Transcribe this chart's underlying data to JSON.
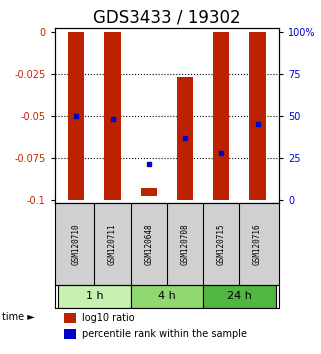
{
  "title": "GDS3433 / 19302",
  "samples": [
    "GSM120710",
    "GSM120711",
    "GSM120648",
    "GSM120708",
    "GSM120715",
    "GSM120716"
  ],
  "time_groups": [
    {
      "label": "1 h",
      "color": "#c8f0b0",
      "start": 0,
      "end": 1
    },
    {
      "label": "4 h",
      "color": "#90d870",
      "start": 2,
      "end": 3
    },
    {
      "label": "24 h",
      "color": "#50b840",
      "start": 4,
      "end": 5
    }
  ],
  "red_bar_top": [
    0.0,
    0.0,
    -0.093,
    -0.027,
    0.0,
    0.0
  ],
  "red_bar_bottom": [
    -0.1,
    -0.1,
    -0.098,
    -0.1,
    -0.1,
    -0.1
  ],
  "blue_sq_y": [
    -0.05,
    -0.052,
    -0.079,
    -0.063,
    -0.072,
    -0.055
  ],
  "ylim": [
    0.002,
    -0.102
  ],
  "yticks_left": [
    0,
    -0.025,
    -0.05,
    -0.075,
    -0.1
  ],
  "yticks_right_pct": [
    "100%",
    "75",
    "50",
    "25",
    "0"
  ],
  "yticks_right_val": [
    0,
    -0.025,
    -0.05,
    -0.075,
    -0.1
  ],
  "bar_color": "#bb2200",
  "blue_color": "#0000cc",
  "title_fontsize": 12,
  "axis_color_left": "#cc2200",
  "axis_color_right": "#0000cc",
  "bar_width": 0.45
}
